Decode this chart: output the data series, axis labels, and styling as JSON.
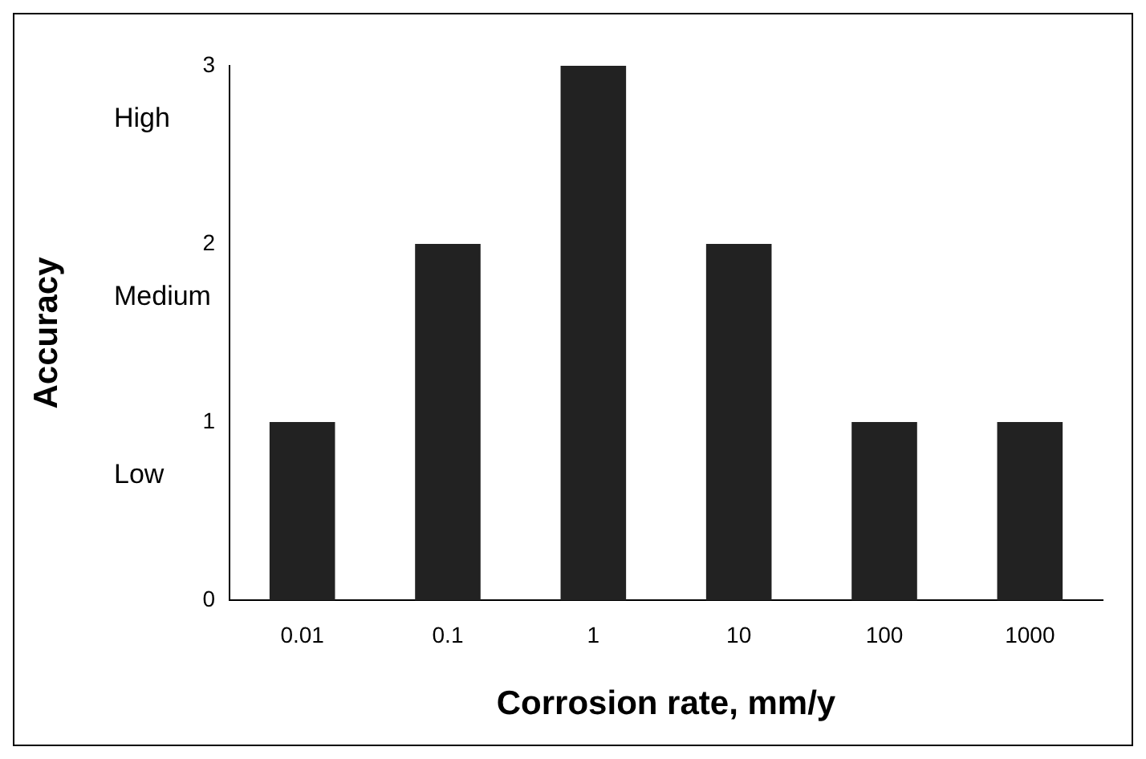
{
  "chart_data": {
    "type": "bar",
    "xlabel": "Corrosion rate, mm/y",
    "ylabel": "Accuracy",
    "categories": [
      "0.01",
      "0.1",
      "1",
      "10",
      "100",
      "1000"
    ],
    "values": [
      1,
      2,
      3,
      2,
      1,
      1
    ],
    "color": "#222222",
    "ylim": [
      0,
      3
    ],
    "yticks": [
      0,
      1,
      2,
      3
    ],
    "grid": false,
    "legend": false,
    "annotations": [
      "High",
      "Medium",
      "Low"
    ]
  }
}
